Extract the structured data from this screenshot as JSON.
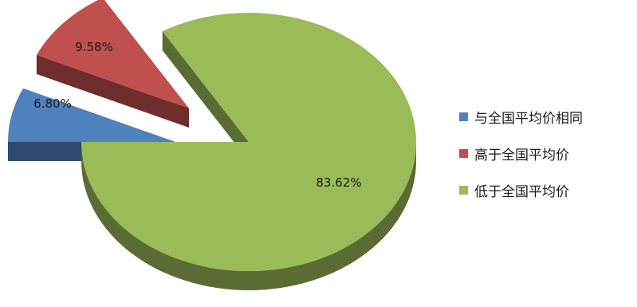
{
  "chart_data": {
    "type": "pie",
    "style": "3d-exploded",
    "title": "",
    "categories": [
      "与全国平均价相同",
      "高于全国平均价",
      "低于全国平均价"
    ],
    "values": [
      6.8,
      9.58,
      83.62
    ],
    "data_labels": [
      "6.80%",
      "9.58%",
      "83.62%"
    ],
    "colors": [
      "#4f81bd",
      "#c0504d",
      "#9bbb59"
    ],
    "legend_position": "right"
  }
}
